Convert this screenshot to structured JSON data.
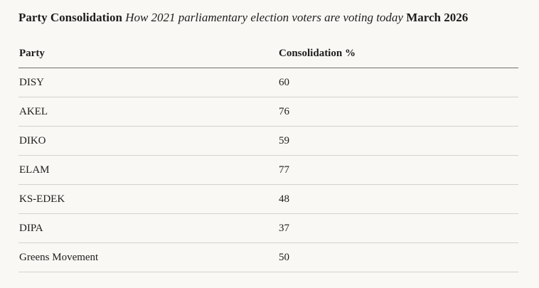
{
  "header": {
    "title": "Party Consolidation",
    "subtitle": "How 2021 parliamentary election voters are voting today",
    "date": "March 2026"
  },
  "chart_data": {
    "type": "table",
    "columns": [
      "Party",
      "Consolidation %"
    ],
    "rows": [
      {
        "party": "DISY",
        "value": 60
      },
      {
        "party": "AKEL",
        "value": 76
      },
      {
        "party": "DIKO",
        "value": 59
      },
      {
        "party": "ELAM",
        "value": 77
      },
      {
        "party": "KS-EDEK",
        "value": 48
      },
      {
        "party": "DIPA",
        "value": 37
      },
      {
        "party": "Greens Movement",
        "value": 50
      }
    ]
  }
}
